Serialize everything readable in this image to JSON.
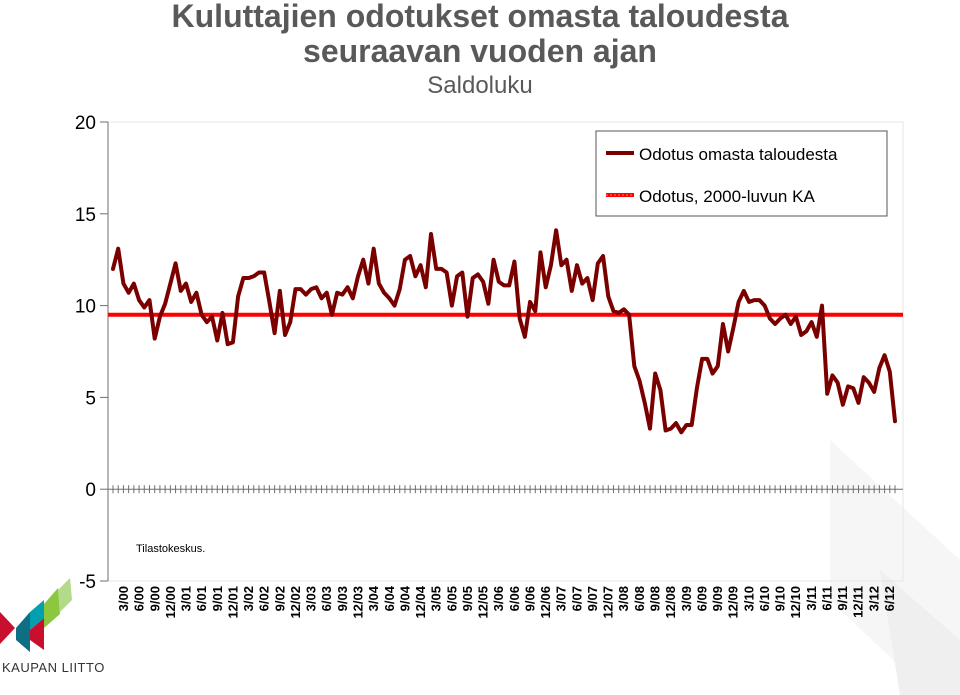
{
  "title_line1": "Kuluttajien odotukset omasta taloudesta",
  "title_line2": "seuraavan vuoden ajan",
  "subtitle": "Saldoluku",
  "source_note": "Tilastokeskus.",
  "logo_text": "KAUPAN LIITTO",
  "colors": {
    "series": "#7a0000",
    "average": "#ff0000",
    "text": "#595959",
    "axis": "#6f6f6f"
  },
  "chart_data": {
    "type": "line",
    "title": "Kuluttajien odotukset omasta taloudesta seuraavan vuoden ajan",
    "subtitle": "Saldoluku",
    "ylim": [
      -5,
      20
    ],
    "y_ticks": [
      -5,
      0,
      5,
      10,
      15,
      20
    ],
    "grid": false,
    "legend_position": "top-right",
    "x_tick_labels": [
      "3/00",
      "6/00",
      "9/00",
      "12/00",
      "3/01",
      "6/01",
      "9/01",
      "12/01",
      "3/02",
      "6/02",
      "9/02",
      "12/02",
      "3/03",
      "6/03",
      "9/03",
      "12/03",
      "3/04",
      "6/04",
      "9/04",
      "12/04",
      "3/05",
      "6/05",
      "9/05",
      "12/05",
      "3/06",
      "6/06",
      "9/06",
      "12/06",
      "3/07",
      "6/07",
      "9/07",
      "12/07",
      "3/08",
      "6/08",
      "9/08",
      "12/08",
      "3/09",
      "6/09",
      "9/09",
      "12/09",
      "3/10",
      "6/10",
      "9/10",
      "12/10",
      "3/11",
      "6/11",
      "9/11",
      "12/11",
      "3/12",
      "6/12"
    ],
    "series": [
      {
        "name": "Odotus omasta taloudesta",
        "color": "#7a0000",
        "values": [
          12.0,
          13.1,
          11.2,
          10.7,
          11.2,
          10.3,
          9.9,
          10.3,
          8.2,
          9.4,
          10.1,
          11.2,
          12.3,
          10.8,
          11.2,
          10.2,
          10.7,
          9.5,
          9.1,
          9.4,
          8.1,
          9.6,
          7.9,
          8.0,
          10.5,
          11.5,
          11.5,
          11.6,
          11.8,
          11.8,
          10.2,
          8.5,
          10.8,
          8.4,
          9.1,
          10.9,
          10.9,
          10.6,
          10.9,
          11.0,
          10.4,
          10.7,
          9.5,
          10.7,
          10.6,
          11.0,
          10.4,
          11.6,
          12.5,
          11.2,
          13.1,
          11.2,
          10.7,
          10.4,
          10.0,
          10.9,
          12.5,
          12.7,
          11.6,
          12.2,
          11.0,
          13.9,
          12.0,
          12.0,
          11.8,
          10.0,
          11.6,
          11.8,
          9.4,
          11.5,
          11.7,
          11.3,
          10.1,
          12.5,
          11.3,
          11.1,
          11.1,
          12.4,
          9.3,
          8.3,
          10.2,
          9.7,
          12.9,
          11.0,
          12.2,
          14.1,
          12.2,
          12.5,
          10.8,
          12.2,
          11.2,
          11.5,
          10.3,
          12.3,
          12.7,
          10.5,
          9.7,
          9.6,
          9.8,
          9.5,
          6.7,
          5.9,
          4.7,
          3.3,
          6.3,
          5.4,
          3.2,
          3.3,
          3.6,
          3.1,
          3.5,
          3.5,
          5.5,
          7.1,
          7.1,
          6.3,
          6.7,
          9.0,
          7.5,
          8.8,
          10.2,
          10.8,
          10.2,
          10.3,
          10.3,
          10.0,
          9.3,
          9.0,
          9.3,
          9.5,
          9.0,
          9.4,
          8.4,
          8.6,
          9.1,
          8.3,
          10.0,
          5.2,
          6.2,
          5.8,
          4.6,
          5.6,
          5.5,
          4.7,
          6.1,
          5.8,
          5.3,
          6.6,
          7.3,
          6.4,
          3.7
        ]
      },
      {
        "name": "Odotus, 2000-luvun KA",
        "color": "#ff0000",
        "constant": 9.5
      }
    ]
  }
}
